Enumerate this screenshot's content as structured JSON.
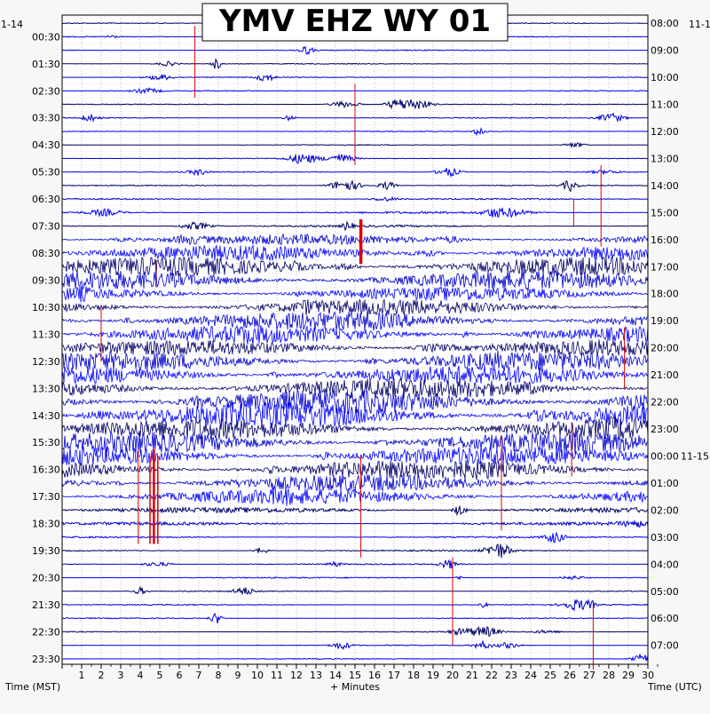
{
  "chart_data": {
    "type": "line",
    "title": "YMV EHZ WY 01",
    "xlabel": "+ Minutes",
    "left_label": "Time (MST)",
    "right_label": "Time (UTC)",
    "left_date": "1-14",
    "right_date": "11-1",
    "right_date_rollover": "11-15",
    "xlim": [
      0,
      30
    ],
    "x_ticks": [
      "1",
      "2",
      "3",
      "4",
      "5",
      "6",
      "7",
      "8",
      "9",
      "10",
      "11",
      "12",
      "13",
      "14",
      "15",
      "16",
      "17",
      "18",
      "19",
      "20",
      "21",
      "22",
      "23",
      "24",
      "25",
      "26",
      "27",
      "28",
      "29",
      "30"
    ],
    "left_times": [
      "00:30",
      "01:30",
      "02:30",
      "03:30",
      "04:30",
      "05:30",
      "06:30",
      "07:30",
      "08:30",
      "09:30",
      "10:30",
      "11:30",
      "12:30",
      "13:30",
      "14:30",
      "15:30",
      "16:30",
      "17:30",
      "18:30",
      "19:30",
      "20:30",
      "21:30",
      "22:30",
      "23:30"
    ],
    "right_times": [
      "08:00",
      "09:00",
      "10:00",
      "11:00",
      "12:00",
      "13:00",
      "14:00",
      "15:00",
      "16:00",
      "17:00",
      "18:00",
      "19:00",
      "20:00",
      "21:00",
      "22:00",
      "23:00",
      "00:00",
      "01:00",
      "02:00",
      "03:00",
      "04:00",
      "05:00",
      "06:00",
      "07:00"
    ],
    "trace_count": 48,
    "trace_colors": [
      "#000066",
      "#0000cc",
      "#0000ff"
    ],
    "event_color": "#dd0000",
    "noise_level": [
      0.5,
      0.6,
      0.6,
      0.5,
      0.5,
      0.5,
      0.5,
      0.5,
      0.5,
      0.5,
      0.5,
      0.6,
      0.6,
      0.8,
      1.2,
      1.2,
      6,
      9,
      11,
      11,
      8,
      9,
      11,
      10,
      9,
      11,
      11,
      12,
      14,
      15,
      12,
      12,
      11,
      11,
      10,
      9,
      3,
      1.8,
      1,
      0.8,
      0.7,
      0.7,
      0.6,
      0.6,
      0.6,
      0.6,
      0.5,
      0.5
    ],
    "events": [
      {
        "minute": 6.8,
        "from": 0.2,
        "to": 5.5,
        "width": 1
      },
      {
        "minute": 15.0,
        "from": 4.5,
        "to": 10.5,
        "width": 1
      },
      {
        "minute": 15.3,
        "from": 14.5,
        "to": 17.8,
        "width": 3.5
      },
      {
        "minute": 4.8,
        "from": 17.5,
        "to": 19.5,
        "width": 1
      },
      {
        "minute": 27.6,
        "from": 10.5,
        "to": 16.5,
        "width": 1
      },
      {
        "minute": 26.2,
        "from": 13,
        "to": 15,
        "width": 1
      },
      {
        "minute": 28.8,
        "from": 22.5,
        "to": 27,
        "width": 1
      },
      {
        "minute": 2.0,
        "from": 21,
        "to": 25,
        "width": 1
      },
      {
        "minute": 4.7,
        "from": 31.5,
        "to": 38.5,
        "width": 2.5
      },
      {
        "minute": 4.5,
        "from": 32,
        "to": 38.5,
        "width": 1.5
      },
      {
        "minute": 4.9,
        "from": 32,
        "to": 38.5,
        "width": 1.5
      },
      {
        "minute": 3.9,
        "from": 31.5,
        "to": 38.5,
        "width": 1
      },
      {
        "minute": 15.3,
        "from": 32,
        "to": 39.5,
        "width": 1
      },
      {
        "minute": 22.5,
        "from": 30.5,
        "to": 37.5,
        "width": 1
      },
      {
        "minute": 26.1,
        "from": 29.5,
        "to": 33.5,
        "width": 1
      },
      {
        "minute": 20.0,
        "from": 39.5,
        "to": 46,
        "width": 1
      },
      {
        "minute": 27.2,
        "from": 43,
        "to": 47.8,
        "width": 1
      }
    ]
  }
}
